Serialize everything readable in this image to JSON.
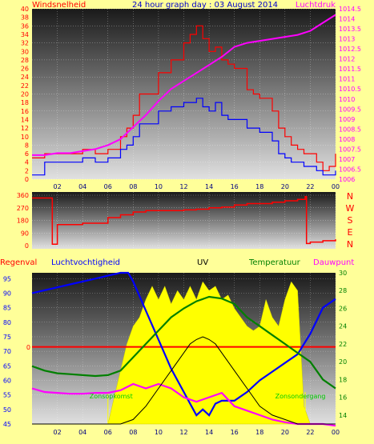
{
  "title": "24 hour graph day : 03 August 2014",
  "colors": {
    "background": "#ffff99",
    "red": "#ff0000",
    "blue": "#0000ff",
    "magenta": "#ff00ff",
    "green": "#008000",
    "uv_fill": "#ffff00",
    "title_blue": "#0000cc",
    "grid": "#ffffff"
  },
  "chart_data": [
    {
      "type": "line",
      "name": "wind-pressure",
      "label_left": "Windsnelheid",
      "label_right": "Luchtdruk",
      "ylim_left": [
        0,
        40
      ],
      "ylim_right": [
        1006,
        1014.5
      ],
      "left_ticks": [
        "0",
        "2",
        "4",
        "6",
        "8",
        "10",
        "12",
        "14",
        "16",
        "18",
        "20",
        "22",
        "24",
        "26",
        "28",
        "30",
        "32",
        "34",
        "36",
        "38",
        "40"
      ],
      "right_ticks": [
        "1006",
        "1006.5",
        "1007",
        "1007.5",
        "1008",
        "1008.5",
        "1009",
        "1009.5",
        "1010",
        "1010.5",
        "1011",
        "1011.5",
        "1012",
        "1012.5",
        "1013",
        "1013.5",
        "1014",
        "1014.5"
      ],
      "x_ticks": [
        "02",
        "04",
        "06",
        "08",
        "10",
        "12",
        "14",
        "16",
        "18",
        "20",
        "22",
        "00"
      ],
      "series": [
        {
          "role": "gust",
          "axis": "left",
          "color": "#ff0000",
          "x": [
            0,
            1,
            2,
            3,
            4,
            5,
            6,
            7,
            7.5,
            8,
            8.5,
            9,
            10,
            11,
            12,
            12.5,
            13,
            13.5,
            14,
            14.5,
            15,
            15.5,
            16,
            17,
            17.5,
            18,
            19,
            19.5,
            20,
            20.5,
            21,
            21.5,
            22,
            22.5,
            23,
            23.5,
            24
          ],
          "y": [
            5,
            6,
            6,
            6,
            7,
            6,
            7,
            10,
            12,
            15,
            20,
            20,
            25,
            28,
            32,
            34,
            36,
            33,
            30,
            31,
            28,
            27,
            26,
            21,
            20,
            19,
            16,
            12,
            10,
            8,
            7,
            6,
            6,
            4,
            2,
            3,
            6
          ]
        },
        {
          "role": "average",
          "axis": "left",
          "color": "#0000ff",
          "x": [
            0,
            1,
            2,
            3,
            4,
            5,
            6,
            7,
            7.5,
            8,
            8.5,
            9,
            10,
            11,
            12,
            12.5,
            13,
            13.5,
            14,
            14.5,
            15,
            15.5,
            16,
            17,
            17.5,
            18,
            19,
            19.5,
            20,
            20.5,
            21,
            21.5,
            22,
            22.5,
            23,
            23.5,
            24
          ],
          "y": [
            1,
            4,
            4,
            4,
            5,
            4,
            5,
            7,
            8,
            10,
            13,
            13,
            16,
            17,
            18,
            18,
            19,
            17,
            16,
            18,
            15,
            14,
            14,
            12,
            12,
            11,
            9,
            6,
            5,
            4,
            4,
            3,
            3,
            2,
            1,
            1,
            2
          ]
        },
        {
          "role": "pressure",
          "axis": "right",
          "color": "#ff00ff",
          "x": [
            0,
            1,
            2,
            3,
            4,
            5,
            6,
            7,
            8,
            9,
            10,
            11,
            12,
            13,
            14,
            15,
            16,
            17,
            18,
            19,
            20,
            21,
            22,
            23,
            24
          ],
          "y": [
            1007.2,
            1007.2,
            1007.3,
            1007.3,
            1007.4,
            1007.5,
            1007.7,
            1008,
            1008.6,
            1009.2,
            1009.9,
            1010.5,
            1010.9,
            1011.3,
            1011.7,
            1012.1,
            1012.6,
            1012.8,
            1012.9,
            1013,
            1013.1,
            1013.2,
            1013.4,
            1013.8,
            1014.2
          ]
        }
      ]
    },
    {
      "type": "line",
      "name": "wind-direction",
      "ylim": [
        0,
        360
      ],
      "left_ticks": [
        "0",
        "90",
        "180",
        "270",
        "360"
      ],
      "direction_labels": [
        "N",
        "W",
        "S",
        "E",
        "N"
      ],
      "series": [
        {
          "role": "direction",
          "color": "#ff0000",
          "x": [
            0,
            1.5,
            1.6,
            2,
            3,
            4,
            5,
            6,
            7,
            8,
            9,
            10,
            11,
            12,
            13,
            14,
            15,
            16,
            17,
            18,
            19,
            20,
            21,
            21.6,
            21.7,
            22,
            23,
            24
          ],
          "y": [
            340,
            340,
            10,
            150,
            150,
            160,
            160,
            200,
            220,
            240,
            250,
            250,
            250,
            255,
            260,
            270,
            275,
            290,
            300,
            300,
            310,
            320,
            330,
            350,
            15,
            25,
            35,
            45
          ]
        }
      ]
    },
    {
      "type": "line",
      "name": "humidity-uv-temperature",
      "labels": [
        "Regenval",
        "Luchtvochtigheid",
        "UV",
        "Temperatuur",
        "Dauwpunt"
      ],
      "ylim_left": [
        45,
        97
      ],
      "ylim_right": [
        13,
        30
      ],
      "left_ticks": [
        "45",
        "50",
        "55",
        "60",
        "65",
        "70",
        "75",
        "80",
        "85",
        "90",
        "95"
      ],
      "right_ticks": [
        "14",
        "16",
        "18",
        "20",
        "22",
        "24",
        "26",
        "28",
        "30"
      ],
      "rain_value_label": "0",
      "sunrise_label": "Zonsopkomst",
      "sunset_label": "Zonsondergang",
      "sunrise_hour": 6,
      "sunset_hour": 21.6,
      "series": [
        {
          "role": "humidity",
          "axis": "left",
          "color": "#0000ff",
          "x": [
            0,
            1,
            2,
            3,
            4,
            5,
            6,
            7,
            7.6,
            8,
            9,
            10,
            11,
            12,
            12.5,
            13,
            13.5,
            14,
            14.5,
            15,
            16,
            17,
            18,
            19,
            20,
            21,
            22,
            23,
            24
          ],
          "y": [
            90,
            91,
            92,
            93,
            94,
            95,
            96,
            97,
            97,
            94,
            84,
            74,
            64,
            56,
            52,
            48,
            50,
            48,
            52,
            53,
            53,
            56,
            60,
            63,
            66,
            69,
            76,
            85,
            88
          ]
        },
        {
          "role": "temperature",
          "axis": "right",
          "color": "#008000",
          "x": [
            0,
            1,
            2,
            3,
            4,
            5,
            6,
            7,
            8,
            9,
            10,
            11,
            12,
            13,
            14,
            15,
            16,
            17,
            18,
            19,
            20,
            21,
            22,
            23,
            24
          ],
          "y": [
            19.5,
            19,
            18.7,
            18.6,
            18.5,
            18.4,
            18.5,
            19,
            20.5,
            22,
            23.5,
            25,
            26,
            26.8,
            27.3,
            27.1,
            26.5,
            25,
            24,
            23,
            22,
            21,
            20,
            18,
            17
          ]
        },
        {
          "role": "dewpoint",
          "axis": "right",
          "color": "#ff00ff",
          "x": [
            0,
            1,
            2,
            3,
            4,
            5,
            6,
            7,
            8,
            9,
            10,
            11,
            12,
            13,
            14,
            15,
            16,
            17,
            18,
            19,
            20,
            21,
            22,
            23,
            24
          ],
          "y": [
            17,
            16.6,
            16.5,
            16.4,
            16.4,
            16.5,
            16.5,
            16.8,
            17.5,
            17,
            17.5,
            17,
            16,
            15.5,
            16,
            16.5,
            15,
            14.5,
            14,
            13.5,
            13.2,
            13,
            13,
            13,
            12.8
          ]
        },
        {
          "role": "uv",
          "axis": "right",
          "color": "#ffff00",
          "x": [
            0,
            6,
            6.5,
            7,
            7.5,
            8,
            8.5,
            9,
            9.5,
            10,
            10.5,
            11,
            11.5,
            12,
            12.5,
            13,
            13.5,
            14,
            14.5,
            15,
            15.5,
            16,
            16.5,
            17,
            17.5,
            18,
            18.5,
            19,
            19.5,
            20,
            20.5,
            21,
            21.5,
            22,
            24
          ],
          "y": [
            13,
            13,
            16,
            19,
            22,
            24,
            25,
            27,
            28.5,
            27,
            28.5,
            26.5,
            28,
            27,
            28.5,
            27,
            29,
            28,
            28.5,
            27,
            27.5,
            26,
            25,
            24,
            23.5,
            24,
            27,
            25,
            24,
            27,
            29,
            28,
            15,
            13,
            13
          ]
        },
        {
          "role": "radiation",
          "axis": "right",
          "color": "#000000",
          "x": [
            0,
            6,
            7,
            8,
            9,
            10,
            11,
            12,
            12.5,
            13,
            13.5,
            14,
            14.5,
            15,
            16,
            17,
            18,
            19,
            20,
            21,
            22,
            24
          ],
          "y": [
            13,
            13,
            13,
            13.5,
            15,
            17,
            19,
            21,
            22,
            22.5,
            22.8,
            22.5,
            22,
            21,
            19,
            17,
            15,
            14,
            13.5,
            13,
            13,
            13
          ]
        }
      ]
    }
  ]
}
